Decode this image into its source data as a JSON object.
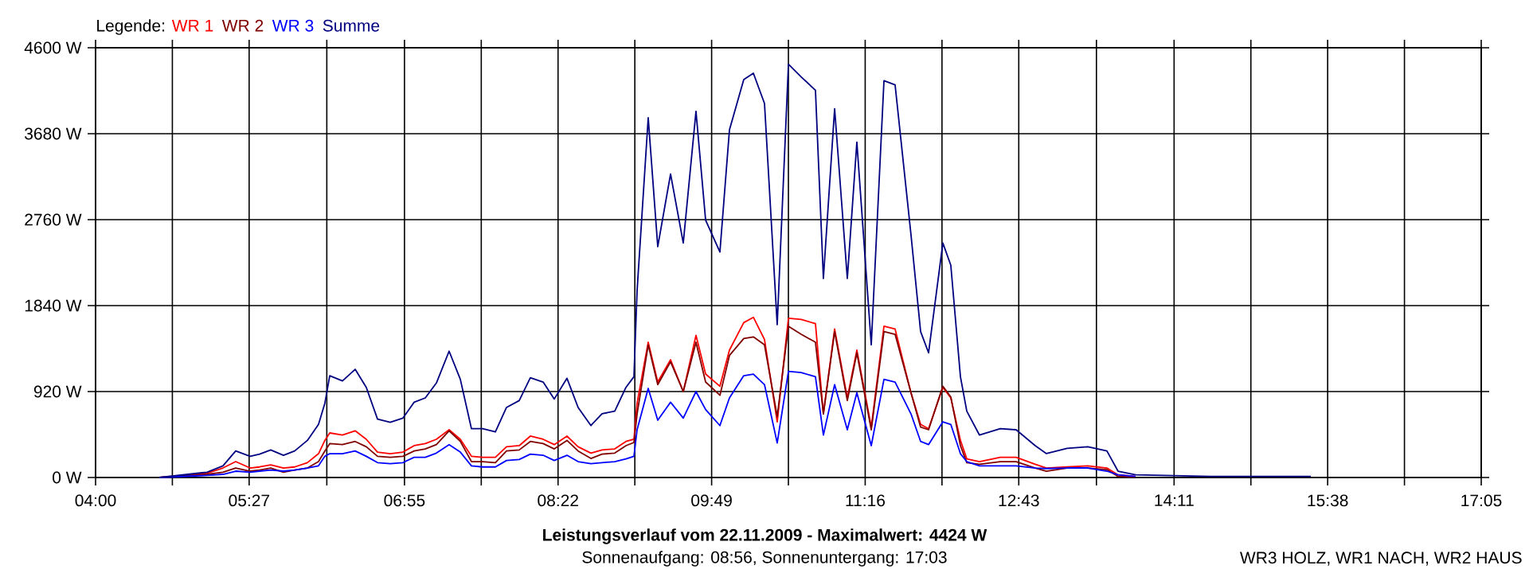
{
  "chart_data": {
    "type": "line",
    "title": "Leistungsverlauf vom 22.11.2009 - Maximalwert: 4424 W",
    "subtitle": "Sonnenaufgang: 08:56, Sonnenuntergang: 17:03",
    "annotations": [
      "WR3 HOLZ, WR1 NACH, WR2 HAUS"
    ],
    "legend_title": "Legende:",
    "legend": "top left",
    "grid": true,
    "marker": "none",
    "line_style": "solid",
    "xlim": [
      4,
      17.0833
    ],
    "ylim": [
      0,
      4600
    ],
    "xticks": [
      {
        "value": 4,
        "label": "04:00"
      },
      {
        "value": 4.725,
        "label": null
      },
      {
        "value": 5.45,
        "label": "05:27"
      },
      {
        "value": 6.1833,
        "label": null
      },
      {
        "value": 6.9167,
        "label": "06:55"
      },
      {
        "value": 7.6417,
        "label": null
      },
      {
        "value": 8.3667,
        "label": "08:22"
      },
      {
        "value": 9.0917,
        "label": null
      },
      {
        "value": 9.8167,
        "label": "09:49"
      },
      {
        "value": 10.5417,
        "label": null
      },
      {
        "value": 11.2667,
        "label": "11:16"
      },
      {
        "value": 11.9917,
        "label": null
      },
      {
        "value": 12.7167,
        "label": "12:43"
      },
      {
        "value": 13.45,
        "label": null
      },
      {
        "value": 14.1833,
        "label": "14:11"
      },
      {
        "value": 14.9083,
        "label": null
      },
      {
        "value": 15.6333,
        "label": "15:38"
      },
      {
        "value": 16.3583,
        "label": null
      },
      {
        "value": 17.0833,
        "label": "17:05"
      }
    ],
    "yticks": [
      {
        "value": 0,
        "label": "0 W"
      },
      {
        "value": 920,
        "label": "920 W"
      },
      {
        "value": 1840,
        "label": "1840 W"
      },
      {
        "value": 2760,
        "label": "2760 W"
      },
      {
        "value": 3680,
        "label": "3680 W"
      },
      {
        "value": 4600,
        "label": "4600 W"
      }
    ],
    "x": [
      4.602,
      5.053,
      5.203,
      5.323,
      5.459,
      5.549,
      5.654,
      5.774,
      5.88,
      6.0,
      6.105,
      6.165,
      6.211,
      6.331,
      6.451,
      6.556,
      6.662,
      6.782,
      6.902,
      7.008,
      7.113,
      7.218,
      7.338,
      7.444,
      7.549,
      7.654,
      7.775,
      7.88,
      8.0,
      8.105,
      8.226,
      8.331,
      8.451,
      8.556,
      8.677,
      8.782,
      8.902,
      9.008,
      9.083,
      9.113,
      9.218,
      9.308,
      9.429,
      9.549,
      9.669,
      9.76,
      9.895,
      9.985,
      10.12,
      10.211,
      10.316,
      10.436,
      10.542,
      10.662,
      10.797,
      10.872,
      10.978,
      11.098,
      11.188,
      11.324,
      11.444,
      11.549,
      11.699,
      11.79,
      11.865,
      12.0,
      12.075,
      12.166,
      12.226,
      12.346,
      12.542,
      12.692,
      12.872,
      12.978,
      13.173,
      13.369,
      13.549,
      13.654,
      13.82,
      14.527,
      15.474
    ],
    "series": [
      {
        "name": "WR 1",
        "color": "#ff0000",
        "values": [
          0,
          45,
          102,
          170,
          102,
          113,
          136,
          102,
          113,
          159,
          255,
          397,
          477,
          454,
          500,
          409,
          272,
          255,
          272,
          341,
          363,
          409,
          511,
          409,
          227,
          216,
          216,
          329,
          341,
          443,
          409,
          352,
          443,
          329,
          261,
          295,
          306,
          386,
          409,
          795,
          1448,
          1022,
          1261,
          920,
          1522,
          1107,
          977,
          1363,
          1658,
          1715,
          1477,
          596,
          1704,
          1692,
          1647,
          681,
          1590,
          852,
          1363,
          539,
          1619,
          1590,
          908,
          568,
          522,
          965,
          852,
          397,
          199,
          170,
          216,
          216,
          142,
          102,
          113,
          125,
          102,
          28,
          11,
          null,
          null
        ]
      },
      {
        "name": "WR 2",
        "color": "#800000",
        "values": [
          0,
          34,
          57,
          102,
          68,
          79,
          102,
          57,
          79,
          102,
          170,
          284,
          363,
          352,
          386,
          329,
          227,
          216,
          227,
          284,
          306,
          352,
          500,
          386,
          170,
          170,
          159,
          284,
          295,
          386,
          363,
          306,
          397,
          284,
          204,
          250,
          261,
          341,
          375,
          681,
          1420,
          994,
          1238,
          920,
          1448,
          1022,
          880,
          1306,
          1488,
          1505,
          1420,
          653,
          1619,
          1533,
          1448,
          681,
          1562,
          823,
          1335,
          511,
          1562,
          1533,
          908,
          539,
          511,
          977,
          863,
          341,
          159,
          142,
          170,
          170,
          102,
          68,
          102,
          102,
          85,
          11,
          5,
          null,
          null
        ]
      },
      {
        "name": "WR 3",
        "color": "#0000ff",
        "values": [
          0,
          23,
          34,
          68,
          57,
          68,
          79,
          68,
          79,
          102,
          125,
          227,
          255,
          255,
          284,
          227,
          159,
          148,
          159,
          216,
          216,
          261,
          352,
          272,
          125,
          113,
          113,
          182,
          193,
          250,
          238,
          182,
          238,
          170,
          148,
          159,
          170,
          199,
          227,
          511,
          954,
          613,
          806,
          636,
          920,
          727,
          556,
          852,
          1090,
          1107,
          994,
          369,
          1136,
          1124,
          1079,
          454,
          994,
          511,
          908,
          341,
          1051,
          1022,
          681,
          386,
          352,
          596,
          568,
          255,
          170,
          125,
          125,
          125,
          102,
          96,
          102,
          102,
          68,
          28,
          11,
          null,
          null
        ]
      },
      {
        "name": "Summe",
        "color": "#000080",
        "values": [
          0,
          57,
          125,
          284,
          227,
          250,
          295,
          238,
          284,
          397,
          568,
          795,
          1090,
          1034,
          1158,
          965,
          625,
          591,
          636,
          806,
          852,
          1011,
          1352,
          1051,
          522,
          522,
          488,
          750,
          823,
          1068,
          1022,
          840,
          1062,
          750,
          556,
          682,
          710,
          965,
          1079,
          2000,
          3851,
          2471,
          3249,
          2510,
          3919,
          2755,
          2414,
          3720,
          4260,
          4328,
          4004,
          1636,
          4424,
          4288,
          4146,
          2130,
          3947,
          2130,
          3590,
          1420,
          4248,
          4203,
          2600,
          1562,
          1335,
          2510,
          2272,
          1079,
          710,
          454,
          522,
          511,
          341,
          256,
          312,
          329,
          284,
          68,
          28,
          11,
          11
        ]
      }
    ]
  }
}
